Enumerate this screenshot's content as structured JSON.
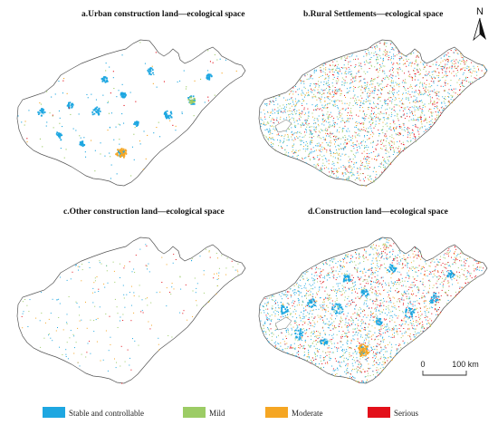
{
  "panels": [
    {
      "title": "a.Urban construction land—ecological space",
      "pattern": "urban"
    },
    {
      "title": "b.Rural Settlements—ecological space",
      "pattern": "rural"
    },
    {
      "title": "c.Other construction land—ecological space",
      "pattern": "other"
    },
    {
      "title": "d.Construction land—ecological space",
      "pattern": "combined"
    }
  ],
  "north_arrow": {
    "label": "N"
  },
  "scale_bar": {
    "start_label": "0",
    "end_label": "100 km"
  },
  "legend": [
    {
      "label": "Stable and controllable",
      "color": "#1ea7e1",
      "icon": "blue-swatch"
    },
    {
      "label": "Mild",
      "color": "#9ccc65",
      "icon": "green-swatch"
    },
    {
      "label": "Moderate",
      "color": "#f5a623",
      "icon": "orange-swatch"
    },
    {
      "label": "Serious",
      "color": "#e3101a",
      "icon": "red-swatch"
    }
  ]
}
